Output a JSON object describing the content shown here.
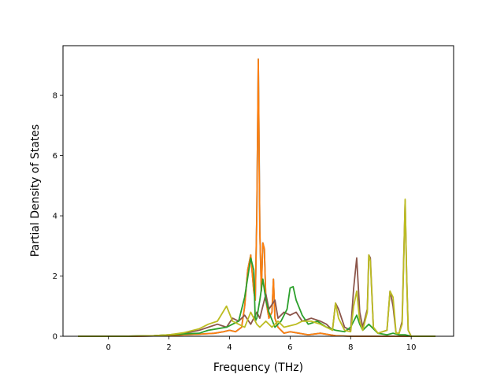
{
  "chart_data": {
    "type": "line",
    "xlabel": "Frequency (THz)",
    "ylabel": "Partial Density of States",
    "xlim": [
      -1.5,
      11.4
    ],
    "ylim": [
      0,
      9.65
    ],
    "xticks": [
      0,
      2,
      4,
      6,
      8,
      10
    ],
    "yticks": [
      0,
      2,
      4,
      6,
      8
    ],
    "xtick_labels": [
      "0",
      "2",
      "4",
      "6",
      "8",
      "10"
    ],
    "ytick_labels": [
      "0",
      "2",
      "4",
      "6",
      "8"
    ],
    "grid": false,
    "legend": "none",
    "series": [
      {
        "color": "#1f77b4",
        "x": [
          -1.0,
          0.0,
          1.0,
          2.0,
          2.5,
          3.0,
          3.5,
          3.8,
          4.0,
          4.2,
          4.4,
          4.5,
          4.6,
          4.7,
          4.8,
          4.85,
          4.9,
          4.95,
          5.0,
          5.05,
          5.1,
          5.15,
          5.2,
          5.3,
          5.4,
          5.45,
          5.5,
          5.6,
          5.8,
          6.0,
          6.3,
          6.6,
          7.0,
          7.5,
          8.0,
          8.5,
          9.0,
          9.5,
          10.0,
          10.8
        ],
        "y": [
          0.0,
          0.0,
          0.0,
          0.02,
          0.05,
          0.07,
          0.1,
          0.15,
          0.2,
          0.15,
          0.3,
          1.0,
          2.2,
          2.7,
          1.5,
          1.2,
          4.0,
          9.2,
          3.5,
          1.5,
          3.1,
          2.9,
          1.2,
          0.6,
          0.8,
          1.9,
          0.6,
          0.3,
          0.1,
          0.15,
          0.1,
          0.05,
          0.1,
          0.02,
          0.0,
          0.0,
          0.0,
          0.0,
          0.0,
          0.0
        ]
      },
      {
        "color": "#ff7f0e",
        "x": [
          -1.0,
          0.0,
          1.0,
          2.0,
          2.5,
          3.0,
          3.5,
          3.8,
          4.0,
          4.2,
          4.4,
          4.5,
          4.6,
          4.7,
          4.8,
          4.85,
          4.9,
          4.95,
          5.0,
          5.05,
          5.1,
          5.15,
          5.2,
          5.3,
          5.4,
          5.45,
          5.5,
          5.6,
          5.8,
          6.0,
          6.3,
          6.6,
          7.0,
          7.5,
          8.0,
          8.5,
          9.0,
          9.5,
          10.0,
          10.8
        ],
        "y": [
          0.0,
          0.0,
          0.0,
          0.02,
          0.05,
          0.07,
          0.1,
          0.15,
          0.2,
          0.15,
          0.3,
          1.0,
          2.2,
          2.7,
          1.5,
          1.2,
          4.0,
          9.2,
          3.5,
          1.5,
          3.1,
          2.9,
          1.2,
          0.6,
          0.8,
          1.9,
          0.6,
          0.3,
          0.1,
          0.15,
          0.1,
          0.05,
          0.1,
          0.02,
          0.0,
          0.0,
          0.0,
          0.0,
          0.0,
          0.0
        ]
      },
      {
        "color": "#8c564b",
        "x": [
          -1.0,
          0.5,
          1.5,
          2.0,
          2.5,
          3.0,
          3.3,
          3.6,
          3.9,
          4.1,
          4.3,
          4.5,
          4.7,
          4.9,
          5.0,
          5.2,
          5.3,
          5.5,
          5.6,
          5.8,
          6.0,
          6.2,
          6.4,
          6.7,
          7.0,
          7.2,
          7.4,
          7.5,
          7.6,
          7.8,
          8.0,
          8.1,
          8.2,
          8.3,
          8.4,
          8.55,
          8.6,
          8.65,
          8.75,
          8.9,
          9.2,
          9.3,
          9.4,
          9.5,
          9.6,
          9.7,
          9.75,
          9.8,
          9.85,
          9.9,
          10.0,
          10.8
        ],
        "y": [
          0.0,
          0.0,
          0.02,
          0.05,
          0.1,
          0.2,
          0.3,
          0.4,
          0.3,
          0.6,
          0.5,
          0.7,
          0.4,
          0.8,
          0.6,
          1.4,
          0.9,
          1.2,
          0.6,
          0.8,
          0.7,
          0.8,
          0.5,
          0.6,
          0.5,
          0.4,
          0.2,
          1.1,
          0.9,
          0.3,
          0.2,
          1.6,
          2.6,
          0.8,
          0.3,
          0.9,
          2.7,
          2.6,
          0.3,
          0.1,
          0.2,
          1.5,
          1.0,
          0.1,
          0.1,
          0.5,
          2.5,
          4.5,
          2.0,
          0.2,
          0.0,
          0.0
        ]
      },
      {
        "color": "#2ca02c",
        "x": [
          -1.0,
          0.5,
          1.5,
          2.0,
          2.5,
          3.0,
          3.3,
          3.6,
          3.9,
          4.1,
          4.3,
          4.5,
          4.7,
          4.8,
          4.85,
          4.9,
          5.0,
          5.1,
          5.2,
          5.3,
          5.5,
          5.7,
          5.9,
          6.0,
          6.1,
          6.2,
          6.4,
          6.6,
          6.9,
          7.2,
          7.5,
          7.8,
          8.0,
          8.2,
          8.3,
          8.4,
          8.6,
          8.9,
          9.2,
          9.4,
          9.6,
          9.8,
          10.0,
          10.8
        ],
        "y": [
          0.0,
          0.0,
          0.02,
          0.05,
          0.08,
          0.1,
          0.2,
          0.25,
          0.3,
          0.4,
          0.5,
          1.3,
          2.6,
          2.2,
          0.5,
          0.6,
          1.2,
          1.9,
          1.2,
          0.8,
          0.3,
          0.5,
          0.9,
          1.6,
          1.65,
          1.2,
          0.7,
          0.4,
          0.5,
          0.3,
          0.2,
          0.15,
          0.3,
          0.7,
          0.4,
          0.2,
          0.4,
          0.1,
          0.05,
          0.1,
          0.05,
          0.05,
          0.0,
          0.0
        ]
      },
      {
        "color": "#bcbd22",
        "x": [
          -1.0,
          0.5,
          1.5,
          2.0,
          2.5,
          3.0,
          3.3,
          3.6,
          3.9,
          4.1,
          4.3,
          4.5,
          4.7,
          4.9,
          5.0,
          5.2,
          5.4,
          5.6,
          5.8,
          6.0,
          6.2,
          6.4,
          6.7,
          7.0,
          7.2,
          7.4,
          7.5,
          7.6,
          7.8,
          8.0,
          8.1,
          8.2,
          8.3,
          8.4,
          8.55,
          8.6,
          8.65,
          8.75,
          8.9,
          9.2,
          9.3,
          9.4,
          9.5,
          9.6,
          9.7,
          9.75,
          9.8,
          9.85,
          9.9,
          10.0,
          10.8
        ],
        "y": [
          0.0,
          0.0,
          0.02,
          0.05,
          0.12,
          0.25,
          0.4,
          0.5,
          1.0,
          0.5,
          0.4,
          0.3,
          0.8,
          0.4,
          0.3,
          0.5,
          0.3,
          0.5,
          0.3,
          0.35,
          0.4,
          0.5,
          0.5,
          0.4,
          0.3,
          0.2,
          1.1,
          0.6,
          0.2,
          0.15,
          1.0,
          1.5,
          0.5,
          0.2,
          0.8,
          2.7,
          2.5,
          0.3,
          0.1,
          0.2,
          1.5,
          1.3,
          0.1,
          0.1,
          0.4,
          2.4,
          4.55,
          2.0,
          0.2,
          0.0,
          0.0
        ]
      }
    ]
  }
}
